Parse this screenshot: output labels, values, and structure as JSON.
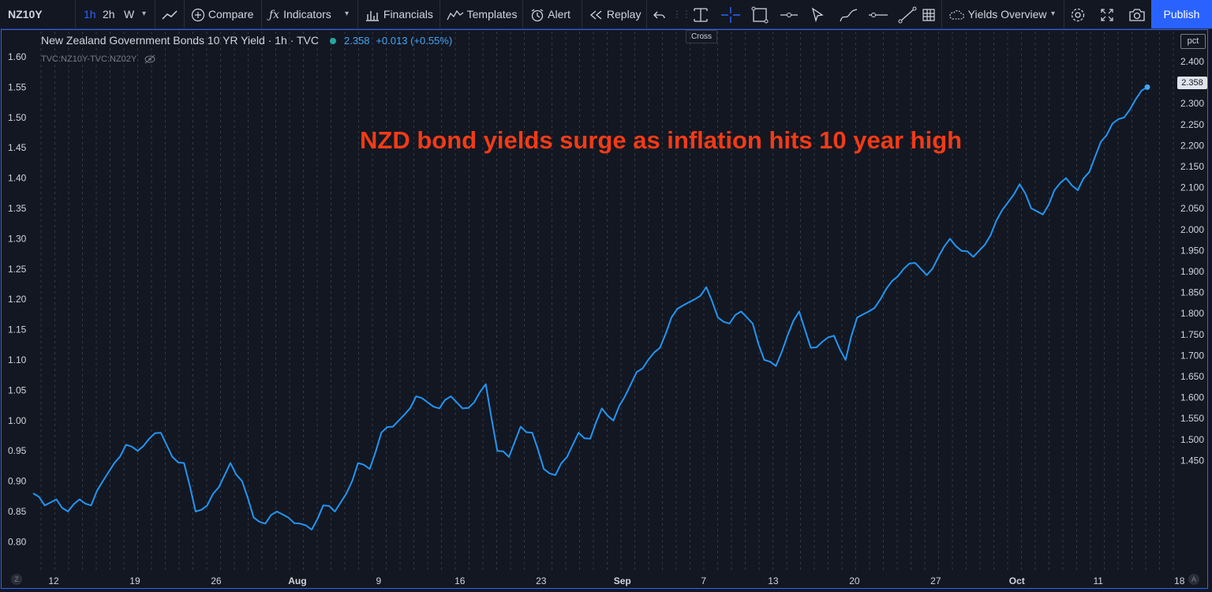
{
  "toolbar": {
    "symbol": "NZ10Y",
    "intervals": [
      "1h",
      "2h",
      "W"
    ],
    "active_interval": "1h",
    "compare": "Compare",
    "indicators": "Indicators",
    "financials": "Financials",
    "templates": "Templates",
    "alert": "Alert",
    "replay": "Replay",
    "layout_name": "Yields Overview",
    "publish": "Publish",
    "tooltip": "Cross",
    "icons": [
      "line-chart-icon",
      "plus-circle-icon",
      "fx-icon",
      "chevron-down-icon",
      "bar-chart-icon",
      "templates-icon",
      "alarm-clock-icon",
      "replay-icon",
      "undo-icon",
      "text-cursor-icon",
      "crosshair-icon",
      "rectangle-icon",
      "horizontal-line-icon",
      "arrow-cursor-icon",
      "brush-icon",
      "ray-icon",
      "trend-line-icon",
      "grid-icon",
      "cloud-icon",
      "gear-icon",
      "fullscreen-icon",
      "camera-icon"
    ]
  },
  "legend": {
    "title": "New Zealand Government Bonds 10 YR Yield · 1h · TVC",
    "value": "2.358",
    "change": "+0.013 (+0.55%)",
    "compare_symbols": "TVC:NZ10Y-TVC:NZ02Y"
  },
  "annotation": "NZD bond yields surge as inflation hits 10 year high",
  "right_axis": {
    "badge": "pct",
    "last_price": "2.358"
  },
  "time_buttons": {
    "left": "Z",
    "right": "A"
  },
  "colors": {
    "background": "#131722",
    "line": "#2196f3",
    "accent": "#2962ff",
    "annotation": "#f23b16",
    "grid": "#363a45"
  },
  "chart_data": {
    "type": "line",
    "left_axis": {
      "ticks": [
        "1.60",
        "1.55",
        "1.50",
        "1.45",
        "1.40",
        "1.35",
        "1.30",
        "1.25",
        "1.20",
        "1.15",
        "1.10",
        "1.05",
        "1.00",
        "0.95",
        "0.90",
        "0.85",
        "0.80"
      ],
      "ylim": [
        0.78,
        1.61
      ]
    },
    "right_axis": {
      "ticks": [
        "2.400",
        "2.350",
        "2.300",
        "2.250",
        "2.200",
        "2.150",
        "2.100",
        "2.050",
        "2.000",
        "1.950",
        "1.900",
        "1.850",
        "1.800",
        "1.750",
        "1.700",
        "1.650",
        "1.600",
        "1.550",
        "1.500",
        "1.450"
      ],
      "ylim": [
        1.42,
        2.41
      ]
    },
    "x_labels": [
      "12",
      "19",
      "26",
      "Aug",
      "9",
      "16",
      "23",
      "Sep",
      "7",
      "13",
      "20",
      "27",
      "Oct",
      "11",
      "18"
    ],
    "x_label_index": [
      0,
      7,
      14,
      21,
      28,
      35,
      42,
      49,
      56,
      62,
      69,
      76,
      83,
      90,
      97
    ],
    "series": [
      {
        "values": [
          0.88,
          0.86,
          0.87,
          0.85,
          0.87,
          0.86,
          0.9,
          0.93,
          0.96,
          0.95,
          0.97,
          0.98,
          0.94,
          0.93,
          0.85,
          0.86,
          0.89,
          0.93,
          0.9,
          0.84,
          0.83,
          0.85,
          0.84,
          0.83,
          0.82,
          0.86,
          0.85,
          0.88,
          0.93,
          0.92,
          0.98,
          0.99,
          1.01,
          1.04,
          1.03,
          1.02,
          1.04,
          1.02,
          1.03,
          1.06,
          0.95,
          0.94,
          0.99,
          0.98,
          0.92,
          0.91,
          0.94,
          0.98,
          0.97,
          1.02,
          1.0,
          1.04,
          1.08,
          1.1,
          1.12,
          1.17,
          1.19,
          1.2,
          1.22,
          1.17,
          1.16,
          1.18,
          1.16,
          1.1,
          1.09,
          1.14,
          1.18,
          1.12,
          1.13,
          1.14,
          1.1,
          1.17,
          1.18,
          1.2,
          1.23,
          1.25,
          1.26,
          1.24,
          1.27,
          1.3,
          1.28,
          1.27,
          1.29,
          1.33,
          1.36,
          1.39,
          1.35,
          1.34,
          1.38,
          1.4,
          1.38,
          1.41,
          1.46,
          1.49,
          1.5,
          1.53,
          1.55
        ]
      }
    ]
  }
}
